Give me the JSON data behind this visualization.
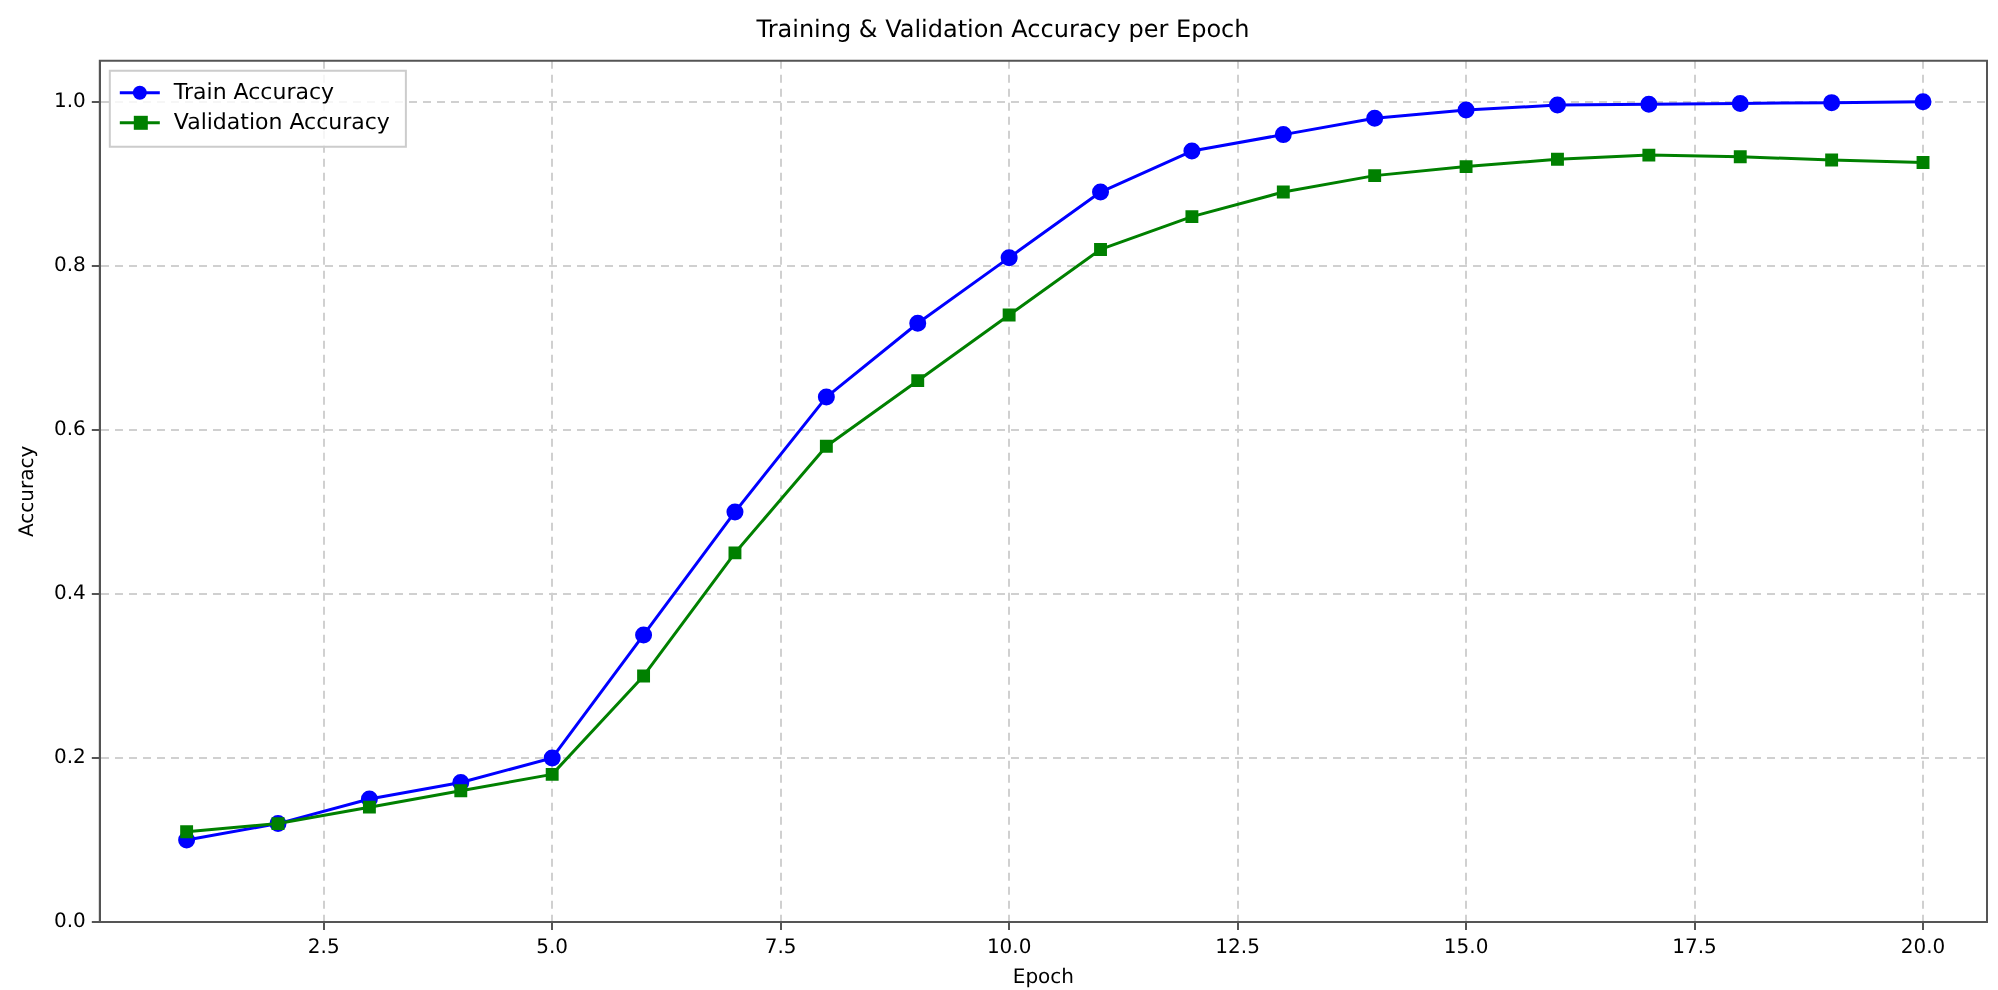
{
  "chart_data": {
    "type": "line",
    "title": "Training & Validation Accuracy per Epoch",
    "xlabel": "Epoch",
    "ylabel": "Accuracy",
    "x": [
      1,
      2,
      3,
      4,
      5,
      6,
      7,
      8,
      9,
      10,
      11,
      12,
      13,
      14,
      15,
      16,
      17,
      18,
      19,
      20
    ],
    "series": [
      {
        "name": "Train Accuracy",
        "color": "#0000ff",
        "marker": "circle",
        "values": [
          0.1,
          0.12,
          0.15,
          0.17,
          0.2,
          0.35,
          0.5,
          0.64,
          0.73,
          0.81,
          0.89,
          0.94,
          0.96,
          0.98,
          0.99,
          0.996,
          0.997,
          0.998,
          0.999,
          1.0
        ]
      },
      {
        "name": "Validation Accuracy",
        "color": "#008000",
        "marker": "square",
        "values": [
          0.11,
          0.12,
          0.14,
          0.16,
          0.18,
          0.3,
          0.45,
          0.58,
          0.66,
          0.74,
          0.82,
          0.86,
          0.89,
          0.91,
          0.921,
          0.93,
          0.935,
          0.933,
          0.929,
          0.926
        ]
      }
    ],
    "xlim": [
      0.05,
      20.7
    ],
    "xticks": [
      {
        "value": 2.5,
        "label": "2.5"
      },
      {
        "value": 5,
        "label": "5.0"
      },
      {
        "value": 7.5,
        "label": "7.5"
      },
      {
        "value": 10,
        "label": "10.0"
      },
      {
        "value": 12.5,
        "label": "12.5"
      },
      {
        "value": 15,
        "label": "15.0"
      },
      {
        "value": 17.5,
        "label": "17.5"
      },
      {
        "value": 20,
        "label": "20.0"
      }
    ],
    "ylim": [
      0,
      1.05
    ],
    "yticks": [
      {
        "value": 0,
        "label": "0.0"
      },
      {
        "value": 0.2,
        "label": "0.2"
      },
      {
        "value": 0.4,
        "label": "0.4"
      },
      {
        "value": 0.6,
        "label": "0.6"
      },
      {
        "value": 0.8,
        "label": "0.8"
      },
      {
        "value": 1,
        "label": "1.0"
      }
    ],
    "grid": true,
    "legend": "top left",
    "line_style": "solid"
  }
}
